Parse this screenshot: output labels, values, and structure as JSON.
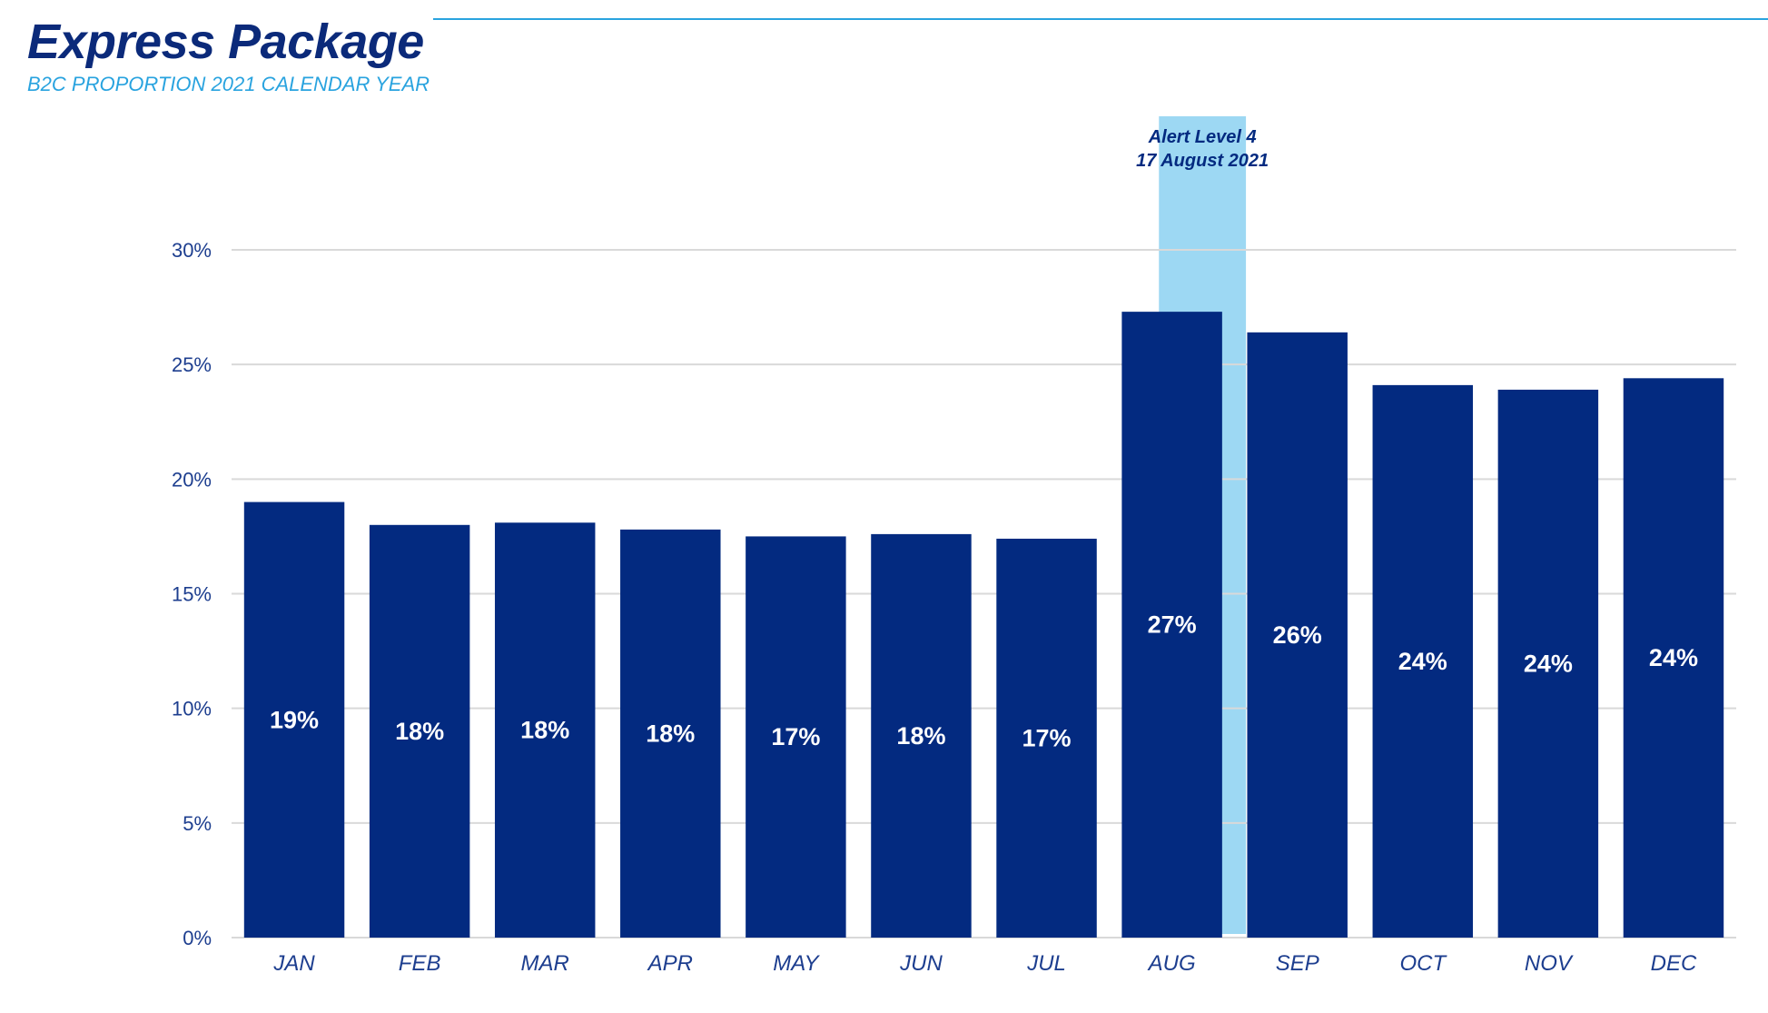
{
  "header": {
    "title": "Express Package",
    "subtitle": "B2C PROPORTION 2021 CALENDAR YEAR"
  },
  "colors": {
    "bar": "#032a80",
    "highlight": "#9dd8f3",
    "title": "#0b2a7a",
    "subtitle": "#29a3df",
    "axis_text": "#1d3e8f",
    "grid": "#d9d9d9",
    "bar_label": "#ffffff"
  },
  "chart_data": {
    "type": "bar",
    "title": "Express Package",
    "subtitle": "B2C PROPORTION 2021 CALENDAR YEAR",
    "xlabel": "",
    "ylabel": "",
    "categories": [
      "JAN",
      "FEB",
      "MAR",
      "APR",
      "MAY",
      "JUN",
      "JUL",
      "AUG",
      "SEP",
      "OCT",
      "NOV",
      "DEC"
    ],
    "values": [
      19.0,
      18.0,
      18.1,
      17.8,
      17.5,
      17.6,
      17.4,
      27.3,
      26.4,
      24.1,
      23.9,
      24.4
    ],
    "data_labels": [
      "19%",
      "18%",
      "18%",
      "18%",
      "17%",
      "18%",
      "17%",
      "27%",
      "26%",
      "24%",
      "24%",
      "24%"
    ],
    "ylim": [
      0,
      30
    ],
    "yticks": [
      0,
      5,
      10,
      15,
      20,
      25,
      30
    ],
    "ytick_labels": [
      "0%",
      "5%",
      "10%",
      "15%",
      "20%",
      "25%",
      "30%"
    ],
    "grid": true,
    "legend": "none",
    "annotation": {
      "lines": [
        "Alert Level 4",
        "17 August 2021"
      ],
      "spans_categories": [
        "AUG",
        "SEP"
      ]
    }
  }
}
